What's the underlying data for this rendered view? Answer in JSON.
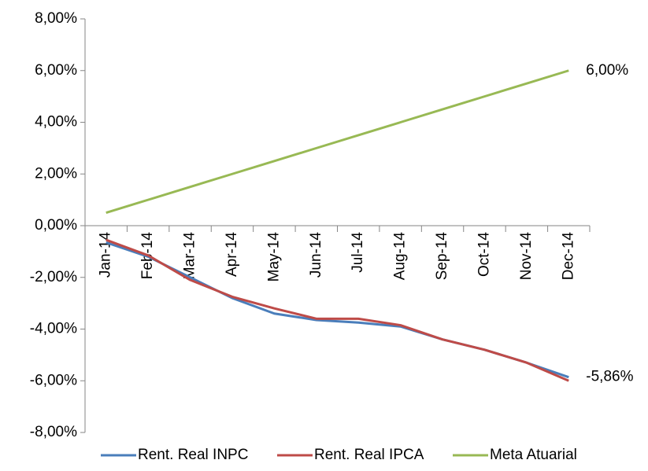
{
  "chart_data": {
    "type": "line",
    "categories": [
      "Jan-14",
      "Feb-14",
      "Mar-14",
      "Apr-14",
      "May-14",
      "Jun-14",
      "Jul-14",
      "Aug-14",
      "Sep-14",
      "Oct-14",
      "Nov-14",
      "Dec-14"
    ],
    "series": [
      {
        "name": "Rent. Real INPC",
        "color": "#4a7ebb",
        "values": [
          -0.65,
          -1.2,
          -2.0,
          -2.8,
          -3.4,
          -3.65,
          -3.75,
          -3.9,
          -4.4,
          -4.8,
          -5.3,
          -5.86
        ],
        "value_labels": [
          null,
          null,
          null,
          null,
          null,
          null,
          null,
          null,
          null,
          null,
          null,
          "-5,86%"
        ]
      },
      {
        "name": "Rent. Real IPCA",
        "color": "#be4b48",
        "values": [
          -0.55,
          -1.15,
          -2.1,
          -2.75,
          -3.2,
          -3.6,
          -3.6,
          -3.85,
          -4.4,
          -4.8,
          -5.3,
          -6.0
        ]
      },
      {
        "name": "Meta Atuarial",
        "color": "#98b954",
        "values": [
          0.5,
          1.0,
          1.5,
          2.0,
          2.5,
          3.0,
          3.5,
          4.0,
          4.5,
          5.0,
          5.5,
          6.0
        ],
        "value_labels": [
          null,
          null,
          null,
          null,
          null,
          null,
          null,
          null,
          null,
          null,
          null,
          "6,00%"
        ]
      }
    ],
    "ylim": [
      -8,
      8
    ],
    "yticks": [
      {
        "value": -8,
        "label": "-8,00%"
      },
      {
        "value": -6,
        "label": "-6,00%"
      },
      {
        "value": -4,
        "label": "-4,00%"
      },
      {
        "value": -2,
        "label": "-2,00%"
      },
      {
        "value": 0,
        "label": "0,00%"
      },
      {
        "value": 2,
        "label": "2,00%"
      },
      {
        "value": 4,
        "label": "4,00%"
      },
      {
        "value": 6,
        "label": "6,00%"
      },
      {
        "value": 8,
        "label": "8,00%"
      }
    ],
    "legend": "bottom"
  }
}
